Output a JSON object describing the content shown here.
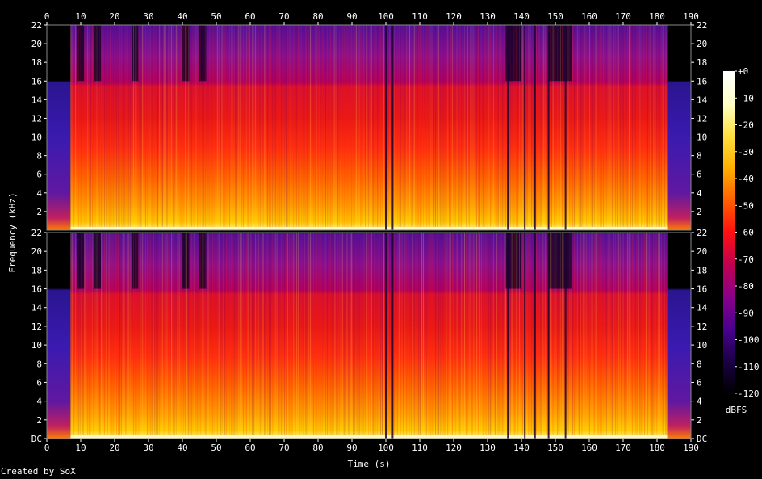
{
  "chart_data": {
    "type": "heatmap",
    "subtype": "spectrogram",
    "channels": 2,
    "xlabel": "Time (s)",
    "ylabel": "Frequency (kHz)",
    "xlim": [
      0,
      190
    ],
    "x_ticks": [
      0,
      10,
      20,
      30,
      40,
      50,
      60,
      70,
      80,
      90,
      100,
      110,
      120,
      130,
      140,
      150,
      160,
      170,
      180,
      190
    ],
    "ylim_khz": [
      0,
      22
    ],
    "y_ticks": [
      {
        "value": 22,
        "label": "22"
      },
      {
        "value": 20,
        "label": "20"
      },
      {
        "value": 18,
        "label": "18"
      },
      {
        "value": 16,
        "label": "16"
      },
      {
        "value": 14,
        "label": "14"
      },
      {
        "value": 12,
        "label": "12"
      },
      {
        "value": 10,
        "label": "10"
      },
      {
        "value": 8,
        "label": "8"
      },
      {
        "value": 6,
        "label": "6"
      },
      {
        "value": 4,
        "label": "4"
      },
      {
        "value": 2,
        "label": "2"
      }
    ],
    "y_ticks_bottom": [
      {
        "value": 22,
        "label": "22"
      },
      {
        "value": 20,
        "label": "20"
      },
      {
        "value": 18,
        "label": "18"
      },
      {
        "value": 16,
        "label": "16"
      },
      {
        "value": 14,
        "label": "14"
      },
      {
        "value": 12,
        "label": "12"
      },
      {
        "value": 10,
        "label": "10"
      },
      {
        "value": 8,
        "label": "8"
      },
      {
        "value": 6,
        "label": "6"
      },
      {
        "value": 4,
        "label": "4"
      },
      {
        "value": 2,
        "label": "2"
      },
      {
        "value": 0,
        "label": "DC"
      }
    ],
    "colorbar": {
      "unit": "dBFS",
      "range_db": [
        -120,
        0
      ],
      "ticks": [
        "+0",
        "-10",
        "-20",
        "-30",
        "-40",
        "-50",
        "-60",
        "-70",
        "-80",
        "-90",
        "-100",
        "-110",
        "-120"
      ],
      "colormap": [
        "#000000",
        "#1a0045",
        "#4a0090",
        "#8a0088",
        "#c00050",
        "#ff1010",
        "#ff6000",
        "#ffb000",
        "#ffe040",
        "#ffffc8",
        "#ffffff"
      ]
    },
    "features": {
      "audio_start_s": 7,
      "audio_end_s": 183,
      "intro_outro_cutoff_khz": 16,
      "full_band_s": [
        [
          8,
          47
        ],
        [
          48,
          135
        ],
        [
          136,
          154
        ],
        [
          156,
          183
        ]
      ],
      "upper_band_gaps_s": [
        [
          9,
          11
        ],
        [
          14,
          16
        ],
        [
          25,
          27
        ],
        [
          40,
          42
        ],
        [
          45,
          47
        ],
        [
          135,
          140
        ],
        [
          148,
          155
        ]
      ],
      "dropouts_s": [
        100,
        102,
        136,
        141,
        144,
        148,
        153
      ]
    }
  },
  "footer": {
    "credit": "Created by SoX"
  }
}
